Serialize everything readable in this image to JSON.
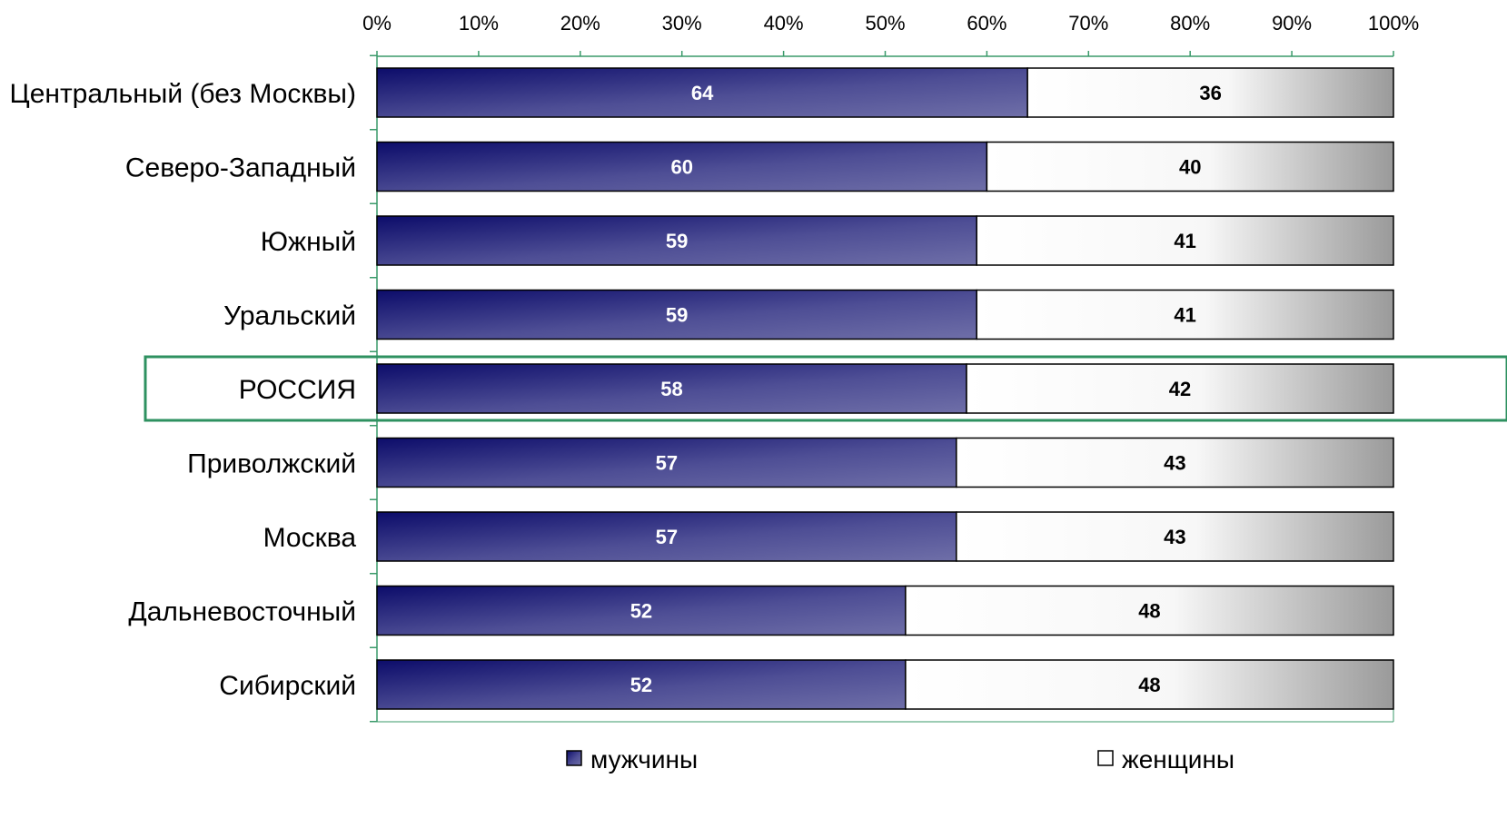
{
  "chart_data": {
    "type": "bar",
    "orientation": "horizontal",
    "stacked": "percent",
    "categories": [
      "Центральный (без Москвы)",
      "Северо-Западный",
      "Южный",
      "Уральский",
      "РОССИЯ",
      "Приволжский",
      "Москва",
      "Дальневосточный",
      "Сибирский"
    ],
    "series": [
      {
        "name": "мужчины",
        "values": [
          64,
          60,
          59,
          59,
          58,
          57,
          57,
          52,
          52
        ],
        "color": "#2a2a86"
      },
      {
        "name": "женщины",
        "values": [
          36,
          40,
          41,
          41,
          42,
          43,
          43,
          48,
          48
        ],
        "color": "#ffffff"
      }
    ],
    "x_ticks": [
      "0%",
      "10%",
      "20%",
      "30%",
      "40%",
      "50%",
      "60%",
      "70%",
      "80%",
      "90%",
      "100%"
    ],
    "xlim": [
      0,
      100
    ],
    "x_axis_position": "top",
    "highlighted_category": "РОССИЯ",
    "highlight_color": "#2e9160",
    "legend_position": "bottom",
    "grid": false
  }
}
